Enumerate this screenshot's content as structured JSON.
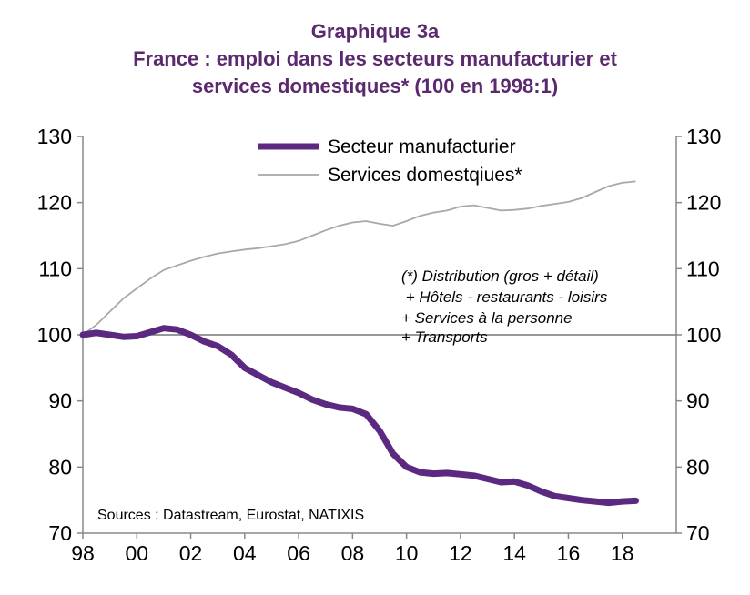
{
  "title": {
    "line1": "Graphique 3a",
    "line2": "France : emploi dans les secteurs manufacturier et",
    "line3": "services domestiques* (100 en 1998:1)"
  },
  "source": "Sources : Datastream, Eurostat, NATIXIS",
  "note": [
    "(*) Distribution (gros + détail)",
    " + Hôtels - restaurants - loisirs",
    "+ Services à la personne",
    "+ Transports"
  ],
  "colors": {
    "manufacturing": "#5b2a80",
    "services": "#a8a8a8",
    "title": "#5b2a6e"
  },
  "chart_data": {
    "type": "line",
    "x_tick_labels": [
      "98",
      "00",
      "02",
      "04",
      "06",
      "08",
      "10",
      "12",
      "14",
      "16",
      "18"
    ],
    "x_ticks": [
      1998,
      2000,
      2002,
      2004,
      2006,
      2008,
      2010,
      2012,
      2014,
      2016,
      2018
    ],
    "xlim": [
      1998,
      2020
    ],
    "ylim": [
      70,
      130
    ],
    "y_ticks": [
      70,
      80,
      90,
      100,
      110,
      120,
      130
    ],
    "y_ticks_right": [
      70,
      80,
      90,
      100,
      110,
      120,
      130
    ],
    "reference_line": 100,
    "legend_position": "top-center",
    "series": [
      {
        "name": "Secteur manufacturier",
        "x": [
          1998.0,
          1998.5,
          1999.0,
          1999.5,
          2000.0,
          2000.5,
          2001.0,
          2001.5,
          2002.0,
          2002.5,
          2003.0,
          2003.5,
          2004.0,
          2004.5,
          2005.0,
          2005.5,
          2006.0,
          2006.5,
          2007.0,
          2007.5,
          2008.0,
          2008.5,
          2009.0,
          2009.5,
          2010.0,
          2010.5,
          2011.0,
          2011.5,
          2012.0,
          2012.5,
          2013.0,
          2013.5,
          2014.0,
          2014.5,
          2015.0,
          2015.5,
          2016.0,
          2016.5,
          2017.0,
          2017.5,
          2018.0,
          2018.5
        ],
        "values": [
          100,
          100.3,
          100,
          99.7,
          99.8,
          100.4,
          101,
          100.8,
          100,
          99,
          98.3,
          97,
          95,
          93.9,
          92.8,
          92,
          91.2,
          90.2,
          89.5,
          89,
          88.8,
          88,
          85.5,
          82,
          80,
          79.2,
          79,
          79.1,
          78.9,
          78.7,
          78.2,
          77.7,
          77.8,
          77.2,
          76.3,
          75.6,
          75.3,
          75,
          74.8,
          74.6,
          74.8,
          74.9
        ]
      },
      {
        "name": "Services domestqiues*",
        "x": [
          1998.0,
          1998.5,
          1999.0,
          1999.5,
          2000.0,
          2000.5,
          2001.0,
          2001.5,
          2002.0,
          2002.5,
          2003.0,
          2003.5,
          2004.0,
          2004.5,
          2005.0,
          2005.5,
          2006.0,
          2006.5,
          2007.0,
          2007.5,
          2008.0,
          2008.5,
          2009.0,
          2009.5,
          2010.0,
          2010.5,
          2011.0,
          2011.5,
          2012.0,
          2012.5,
          2013.0,
          2013.5,
          2014.0,
          2014.5,
          2015.0,
          2015.5,
          2016.0,
          2016.5,
          2017.0,
          2017.5,
          2018.0,
          2018.5
        ],
        "values": [
          100,
          101.5,
          103.5,
          105.5,
          107,
          108.5,
          109.8,
          110.5,
          111.2,
          111.8,
          112.3,
          112.6,
          112.9,
          113.1,
          113.4,
          113.7,
          114.2,
          115,
          115.8,
          116.5,
          117,
          117.2,
          116.8,
          116.5,
          117.2,
          118,
          118.5,
          118.8,
          119.4,
          119.6,
          119.2,
          118.8,
          118.9,
          119.1,
          119.5,
          119.8,
          120.1,
          120.7,
          121.6,
          122.5,
          123,
          123.2
        ]
      }
    ]
  }
}
